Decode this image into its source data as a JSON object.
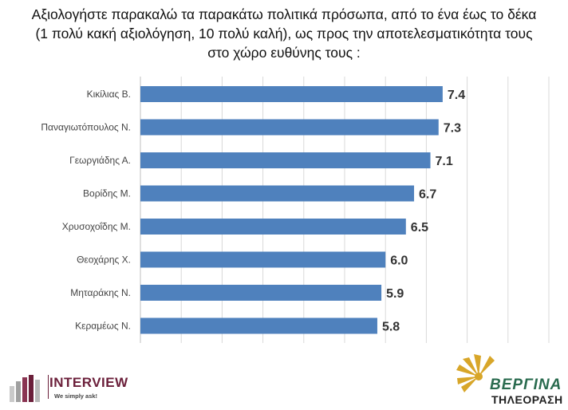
{
  "title_lines": [
    "Αξιολογήστε παρακαλώ τα παρακάτω πολιτικά πρόσωπα, από το ένα έως το δέκα",
    "(1 πολύ κακή αξιολόγηση, 10 πολύ καλή), ως προς την αποτελεσματικότητα τους",
    "στο χώρο ευθύνης τους :"
  ],
  "chart_data": {
    "type": "bar",
    "orientation": "horizontal",
    "title": "Αξιολογήστε παρακαλώ τα παρακάτω πολιτικά πρόσωπα, από το ένα έως το δέκα (1 πολύ κακή αξιολόγηση, 10 πολύ καλή), ως προς την αποτελεσματικότητα τους στο χώρο ευθύνης τους :",
    "categories": [
      "Κικίλιας Β.",
      "Παναγιωτόπουλος Ν.",
      "Γεωργιάδης Α.",
      "Βορίδης Μ.",
      "Χρυσοχοΐδης Μ.",
      "Θεοχάρης Χ.",
      "Μηταράκης Ν.",
      "Κεραμέως Ν."
    ],
    "values": [
      7.4,
      7.3,
      7.1,
      6.7,
      6.5,
      6.0,
      5.9,
      5.8
    ],
    "value_labels": [
      "7.4",
      "7.3",
      "7.1",
      "6.7",
      "6.5",
      "6.0",
      "5.9",
      "5.8"
    ],
    "xlim": [
      0,
      10
    ],
    "xlabel": "",
    "ylabel": "",
    "grid": true,
    "bar_color": "#4f81bd"
  },
  "logos": {
    "interview": {
      "name": "INTERVIEW",
      "tagline": "We simply ask!"
    },
    "vergina": {
      "line1": "ΒΕΡΓΙΝΑ",
      "line2": "ΤΗΛΕΟΡΑΣΗ"
    }
  }
}
